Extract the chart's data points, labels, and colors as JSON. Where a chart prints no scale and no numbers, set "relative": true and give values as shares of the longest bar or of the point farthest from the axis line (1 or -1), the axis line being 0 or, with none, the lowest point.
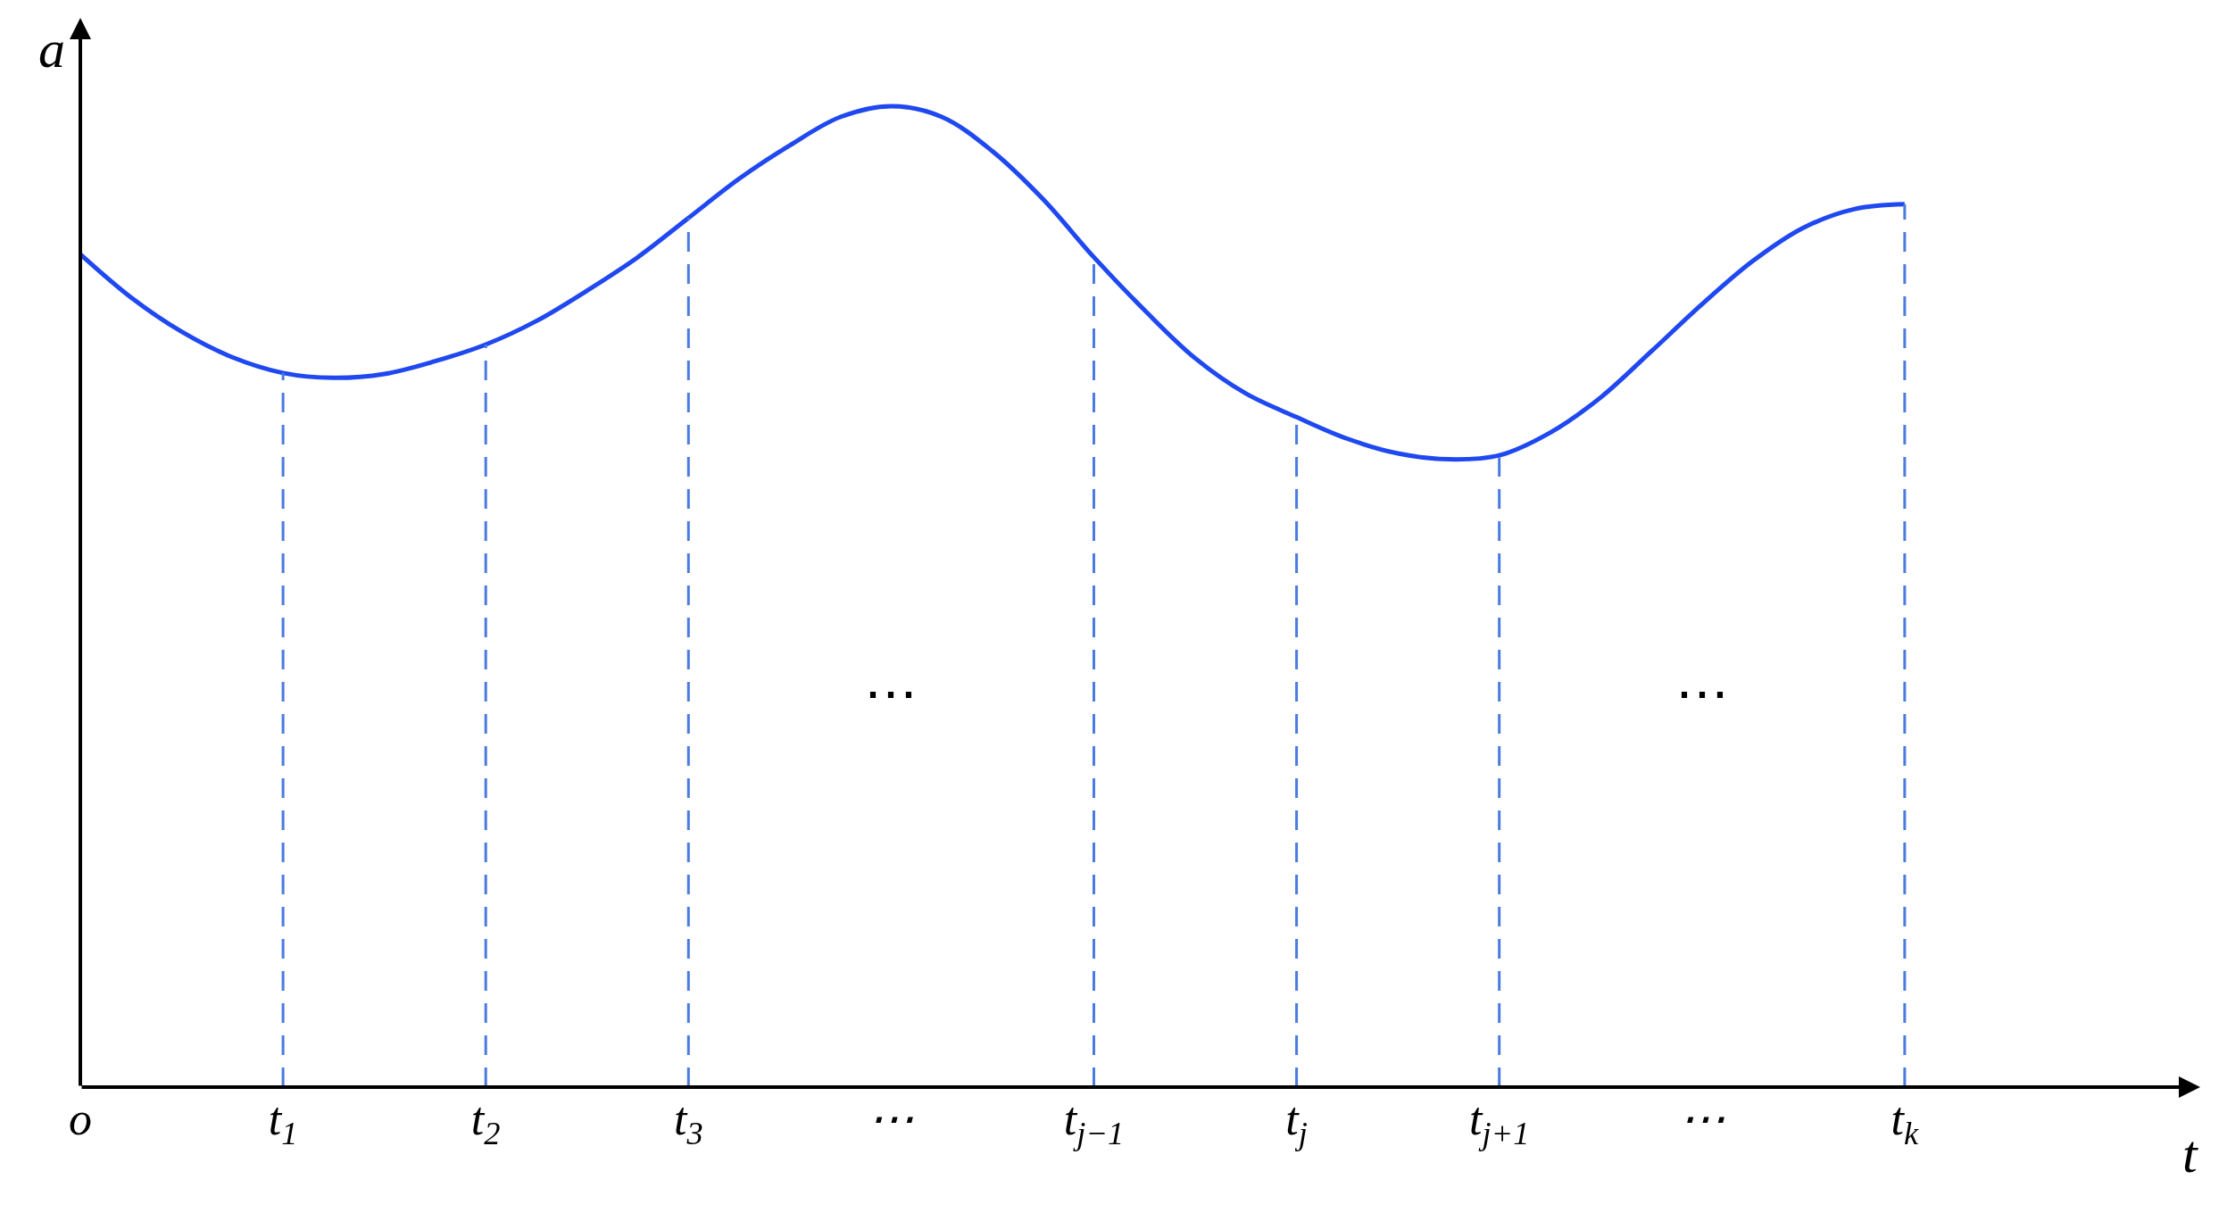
{
  "chart_data": {
    "type": "line",
    "relative": true,
    "xlabel": "t",
    "ylabel": "a",
    "categories": [
      "o",
      null,
      null,
      null,
      "t$_{1}$",
      null,
      null,
      null,
      "t$_{2}$",
      null,
      null,
      null,
      "t$_{3}$",
      null,
      null,
      null,
      "⋯",
      null,
      null,
      null,
      "t$_{j−1}$",
      null,
      null,
      null,
      "t$_{j}$",
      null,
      null,
      null,
      "t$_{j+1}$",
      null,
      null,
      null,
      "⋯",
      null,
      null,
      null,
      "t$_{k}$"
    ],
    "series": [
      {
        "color": "#1f48f0",
        "values": [
          0.849,
          0.805,
          0.77,
          0.744,
          0.728,
          0.723,
          0.727,
          0.74,
          0.757,
          0.781,
          0.812,
          0.846,
          0.886,
          0.926,
          0.96,
          0.989,
          1.0,
          0.989,
          0.954,
          0.905,
          0.846,
          0.792,
          0.743,
          0.707,
          0.683,
          0.661,
          0.646,
          0.64,
          0.644,
          0.667,
          0.703,
          0.75,
          0.798,
          0.842,
          0.876,
          0.895,
          0.9
        ]
      }
    ],
    "ref_lines": [
      {
        "axis": "x",
        "value": "t$_{1}$",
        "color": "#4a7be0",
        "line_style": "dashed"
      },
      {
        "axis": "x",
        "value": "t$_{2}$",
        "color": "#4a7be0",
        "line_style": "dashed"
      },
      {
        "axis": "x",
        "value": "t$_{3}$",
        "color": "#4a7be0",
        "line_style": "dashed"
      },
      {
        "axis": "x",
        "value": "t$_{j−1}$",
        "color": "#4a7be0",
        "line_style": "dashed"
      },
      {
        "axis": "x",
        "value": "t$_{j}$",
        "color": "#4a7be0",
        "line_style": "dashed"
      },
      {
        "axis": "x",
        "value": "t$_{j+1}$",
        "color": "#4a7be0",
        "line_style": "dashed"
      },
      {
        "axis": "x",
        "value": "t$_{k}$",
        "color": "#4a7be0",
        "line_style": "dashed"
      }
    ],
    "annotations": [
      "⋯",
      "⋯"
    ],
    "legend": false,
    "marker": "none",
    "line_style": "solid"
  }
}
